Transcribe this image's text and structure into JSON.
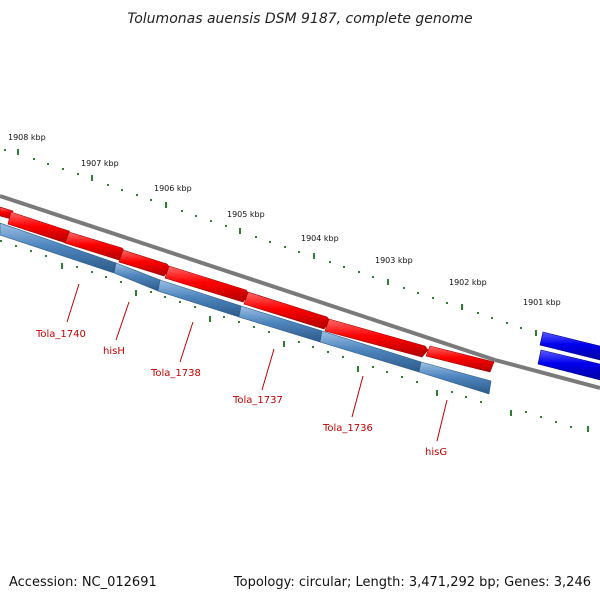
{
  "title": "Tolumonas auensis DSM 9187, complete genome",
  "footer": {
    "accession": "Accession: NC_012691",
    "topology": "Topology: circular; Length: 3,471,292 bp; Genes: 3,246"
  },
  "scale_labels": [
    "1908 kbp",
    "1907 kbp",
    "1906 kbp",
    "1905 kbp",
    "1904 kbp",
    "1903 kbp",
    "1902 kbp",
    "1901 kbp"
  ],
  "gene_labels": [
    "Tola_1740",
    "hisH",
    "Tola_1738",
    "Tola_1737",
    "Tola_1736",
    "hisG"
  ],
  "colors": {
    "forward_gene": "#ee0000",
    "reverse_gene": "#4a7db0",
    "other_gene": "#0000ee",
    "backbone": "#777777",
    "ticks": "#2e7d32",
    "label": "#c00000"
  }
}
